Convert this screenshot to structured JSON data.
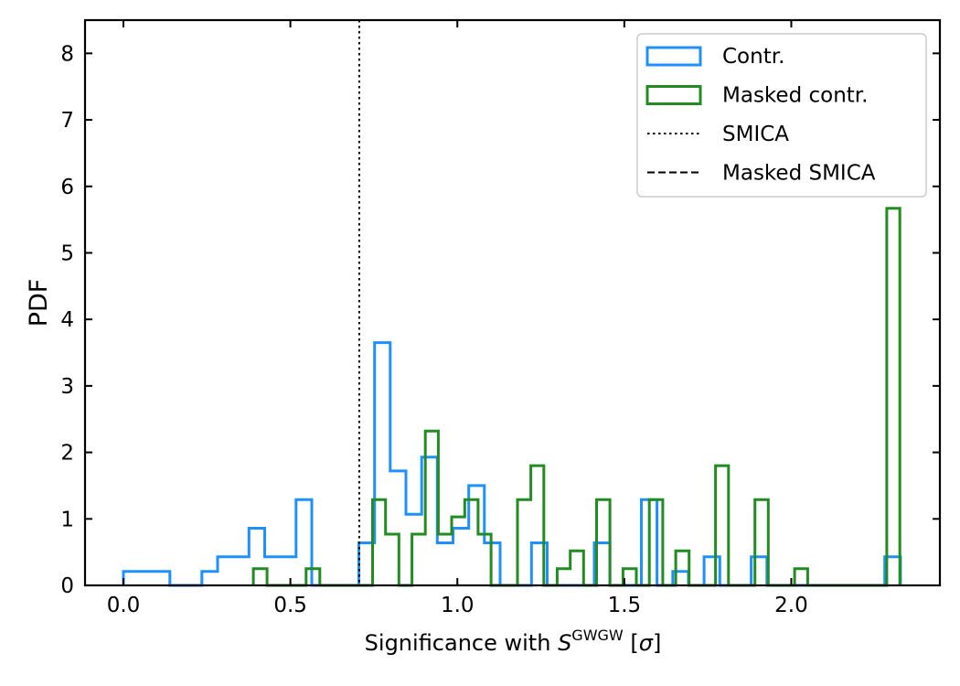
{
  "chart_data": {
    "type": "histogram",
    "xlabel": {
      "prefix": "Significance with ",
      "symbol": "S",
      "superscript": "GWGW",
      "suffix_open": " [",
      "sigma": "σ",
      "suffix_close": "]"
    },
    "ylabel": "PDF",
    "xlim": [
      -0.115,
      2.445
    ],
    "ylim": [
      0,
      8.5
    ],
    "xticks": [
      {
        "value": 0.0,
        "label": "0.0"
      },
      {
        "value": 0.5,
        "label": "0.5"
      },
      {
        "value": 1.0,
        "label": "1.0"
      },
      {
        "value": 1.5,
        "label": "1.5"
      },
      {
        "value": 2.0,
        "label": "2.0"
      }
    ],
    "yticks": [
      {
        "value": 0,
        "label": "0"
      },
      {
        "value": 1,
        "label": "1"
      },
      {
        "value": 2,
        "label": "2"
      },
      {
        "value": 3,
        "label": "3"
      },
      {
        "value": 4,
        "label": "4"
      },
      {
        "value": 5,
        "label": "5"
      },
      {
        "value": 6,
        "label": "6"
      },
      {
        "value": 7,
        "label": "7"
      },
      {
        "value": 8,
        "label": "8"
      }
    ],
    "grid": false,
    "legend_placement": "upper-right",
    "legend": [
      {
        "label": "Contr.",
        "kind": "patch",
        "color": "#1e90ff"
      },
      {
        "label": "Masked contr.",
        "kind": "patch",
        "color": "#228b22"
      },
      {
        "label": "SMICA",
        "kind": "dotted-line",
        "color": "#000000"
      },
      {
        "label": "Masked SMICA",
        "kind": "dashed-line",
        "color": "#000000"
      }
    ],
    "reference_lines": [
      {
        "name": "SMICA",
        "x": 0.706,
        "style": "dotted",
        "color": "#000000"
      }
    ],
    "series": [
      {
        "name": "Contr.",
        "color": "#1e90ff",
        "bins": [
          {
            "x0": 0.0,
            "x1": 0.139,
            "y": 0.21
          },
          {
            "x0": 0.139,
            "x1": 0.235,
            "y": 0.0
          },
          {
            "x0": 0.235,
            "x1": 0.282,
            "y": 0.21
          },
          {
            "x0": 0.282,
            "x1": 0.376,
            "y": 0.43
          },
          {
            "x0": 0.376,
            "x1": 0.423,
            "y": 0.86
          },
          {
            "x0": 0.423,
            "x1": 0.517,
            "y": 0.43
          },
          {
            "x0": 0.517,
            "x1": 0.564,
            "y": 1.29
          },
          {
            "x0": 0.564,
            "x1": 0.705,
            "y": 0.0
          },
          {
            "x0": 0.705,
            "x1": 0.752,
            "y": 0.64
          },
          {
            "x0": 0.752,
            "x1": 0.799,
            "y": 3.65
          },
          {
            "x0": 0.799,
            "x1": 0.846,
            "y": 1.72
          },
          {
            "x0": 0.846,
            "x1": 0.893,
            "y": 1.07
          },
          {
            "x0": 0.893,
            "x1": 0.94,
            "y": 1.93
          },
          {
            "x0": 0.94,
            "x1": 0.987,
            "y": 0.64
          },
          {
            "x0": 0.987,
            "x1": 1.034,
            "y": 0.86
          },
          {
            "x0": 1.034,
            "x1": 1.081,
            "y": 1.5
          },
          {
            "x0": 1.081,
            "x1": 1.128,
            "y": 0.64
          },
          {
            "x0": 1.128,
            "x1": 1.222,
            "y": 0.0
          },
          {
            "x0": 1.222,
            "x1": 1.269,
            "y": 0.64
          },
          {
            "x0": 1.269,
            "x1": 1.41,
            "y": 0.0
          },
          {
            "x0": 1.41,
            "x1": 1.457,
            "y": 0.64
          },
          {
            "x0": 1.457,
            "x1": 1.551,
            "y": 0.0
          },
          {
            "x0": 1.551,
            "x1": 1.598,
            "y": 1.29
          },
          {
            "x0": 1.598,
            "x1": 1.645,
            "y": 0.0
          },
          {
            "x0": 1.645,
            "x1": 1.692,
            "y": 0.21
          },
          {
            "x0": 1.692,
            "x1": 1.739,
            "y": 0.0
          },
          {
            "x0": 1.739,
            "x1": 1.786,
            "y": 0.43
          },
          {
            "x0": 1.786,
            "x1": 1.88,
            "y": 0.0
          },
          {
            "x0": 1.88,
            "x1": 1.927,
            "y": 0.43
          },
          {
            "x0": 1.927,
            "x1": 2.28,
            "y": 0.0
          },
          {
            "x0": 2.28,
            "x1": 2.327,
            "y": 0.43
          }
        ]
      },
      {
        "name": "Masked contr.",
        "color": "#228b22",
        "bins": [
          {
            "x0": 0.389,
            "x1": 0.43,
            "y": 0.25
          },
          {
            "x0": 0.43,
            "x1": 0.547,
            "y": 0.0
          },
          {
            "x0": 0.547,
            "x1": 0.588,
            "y": 0.25
          },
          {
            "x0": 0.588,
            "x1": 0.746,
            "y": 0.0
          },
          {
            "x0": 0.746,
            "x1": 0.785,
            "y": 1.29
          },
          {
            "x0": 0.785,
            "x1": 0.825,
            "y": 0.77
          },
          {
            "x0": 0.825,
            "x1": 0.864,
            "y": 0.0
          },
          {
            "x0": 0.864,
            "x1": 0.904,
            "y": 0.77
          },
          {
            "x0": 0.904,
            "x1": 0.943,
            "y": 2.32
          },
          {
            "x0": 0.943,
            "x1": 0.983,
            "y": 0.77
          },
          {
            "x0": 0.983,
            "x1": 1.022,
            "y": 1.03
          },
          {
            "x0": 1.022,
            "x1": 1.062,
            "y": 1.29
          },
          {
            "x0": 1.062,
            "x1": 1.101,
            "y": 0.77
          },
          {
            "x0": 1.101,
            "x1": 1.18,
            "y": 0.0
          },
          {
            "x0": 1.18,
            "x1": 1.22,
            "y": 1.29
          },
          {
            "x0": 1.22,
            "x1": 1.259,
            "y": 1.8
          },
          {
            "x0": 1.259,
            "x1": 1.299,
            "y": 0.0
          },
          {
            "x0": 1.299,
            "x1": 1.338,
            "y": 0.25
          },
          {
            "x0": 1.338,
            "x1": 1.378,
            "y": 0.52
          },
          {
            "x0": 1.378,
            "x1": 1.417,
            "y": 0.0
          },
          {
            "x0": 1.417,
            "x1": 1.457,
            "y": 1.29
          },
          {
            "x0": 1.457,
            "x1": 1.496,
            "y": 0.0
          },
          {
            "x0": 1.496,
            "x1": 1.536,
            "y": 0.25
          },
          {
            "x0": 1.536,
            "x1": 1.575,
            "y": 0.0
          },
          {
            "x0": 1.575,
            "x1": 1.615,
            "y": 1.29
          },
          {
            "x0": 1.615,
            "x1": 1.654,
            "y": 0.0
          },
          {
            "x0": 1.654,
            "x1": 1.694,
            "y": 0.52
          },
          {
            "x0": 1.694,
            "x1": 1.773,
            "y": 0.0
          },
          {
            "x0": 1.773,
            "x1": 1.812,
            "y": 1.8
          },
          {
            "x0": 1.812,
            "x1": 1.891,
            "y": 0.0
          },
          {
            "x0": 1.891,
            "x1": 1.931,
            "y": 1.29
          },
          {
            "x0": 1.931,
            "x1": 2.01,
            "y": 0.0
          },
          {
            "x0": 2.01,
            "x1": 2.049,
            "y": 0.25
          },
          {
            "x0": 2.049,
            "x1": 2.286,
            "y": 0.0
          },
          {
            "x0": 2.286,
            "x1": 2.325,
            "y": 5.67
          }
        ]
      }
    ]
  }
}
